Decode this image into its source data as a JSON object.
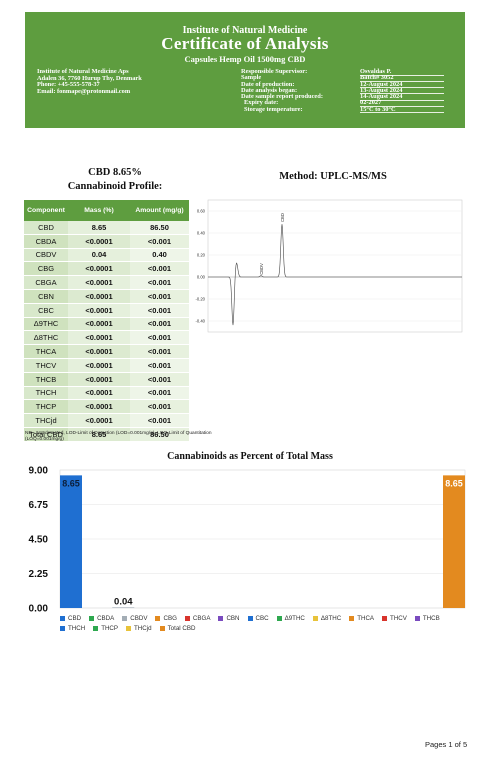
{
  "header": {
    "institute": "Institute of Natural Medicine",
    "title": "Certificate of Analysis",
    "product": "Capsules Hemp Oil 1500mg CBD",
    "company_lines": [
      "Institute of Natural Medicine Aps",
      "Adalen 36, 7760 Hurup Thy, Denmark",
      "Phone: +45-555-578-37",
      "Email: fonmape@protonmail.com"
    ],
    "fields": [
      {
        "label": "Responsible Supervisor:",
        "value": "Osvaldas P."
      },
      {
        "label": "Sample",
        "value": "Batch# 3052"
      },
      {
        "label": "Date of production:",
        "value": "12-August 2024"
      },
      {
        "label": "Date analysis began:",
        "value": "13-August 2024"
      },
      {
        "label": "Date sample report produced:",
        "value": "14-August 2024"
      },
      {
        "label": "Expiry date:",
        "value": "02-2027"
      },
      {
        "label": "Storage temperature:",
        "value": "15°C to 30°C"
      }
    ]
  },
  "profile": {
    "line1": "CBD 8.65%",
    "line2": "Cannabinoid Profile:"
  },
  "method": "Method: UPLC-MS/MS",
  "table": {
    "columns": [
      "Component",
      "Mass (%)",
      "Amount (mg/g)"
    ],
    "rows": [
      [
        "CBD",
        "8.65",
        "86.50"
      ],
      [
        "CBDA",
        "<0.0001",
        "<0.001"
      ],
      [
        "CBDV",
        "0.04",
        "0.40"
      ],
      [
        "CBG",
        "<0.0001",
        "<0.001"
      ],
      [
        "CBGA",
        "<0.0001",
        "<0.001"
      ],
      [
        "CBN",
        "<0.0001",
        "<0.001"
      ],
      [
        "CBC",
        "<0.0001",
        "<0.001"
      ],
      [
        "Δ9THC",
        "<0.0001",
        "<0.001"
      ],
      [
        "Δ8THC",
        "<0.0001",
        "<0.001"
      ],
      [
        "THCA",
        "<0.0001",
        "<0.001"
      ],
      [
        "THCV",
        "<0.0001",
        "<0.001"
      ],
      [
        "THCB",
        "<0.0001",
        "<0.001"
      ],
      [
        "THCH",
        "<0.0001",
        "<0.001"
      ],
      [
        "THCP",
        "<0.0001",
        "<0.001"
      ],
      [
        "THCjd",
        "<0.0001",
        "<0.001"
      ],
      [
        "Total CBD",
        "8.65",
        "86.50"
      ]
    ]
  },
  "footnote": "ND - Not detected, LOD-Limit of Detection (LOD=0.001mg/g), LOQ-Limit of Quantitation (LOQ=0.001mg/g)",
  "chart_data": [
    {
      "type": "line",
      "title": "",
      "yticks": [
        "0.60",
        "0.40",
        "0.20",
        "0.00",
        "-0.20",
        "-0.40"
      ],
      "ylim": [
        -0.5,
        0.7
      ],
      "peak_labels": [
        "CBDV",
        "CBD"
      ],
      "grid": true
    },
    {
      "type": "bar",
      "title": "Cannabinoids as Percent of Total Mass",
      "ylim": [
        0,
        9.0
      ],
      "yticks": [
        "9.00",
        "6.75",
        "4.50",
        "2.25",
        "0.00"
      ],
      "categories": [
        "CBD",
        "CBDA",
        "CBDV",
        "CBG",
        "CBGA",
        "CBN",
        "CBC",
        "Δ9THC",
        "Δ8THC",
        "THCA",
        "THCV",
        "THCB",
        "THCH",
        "THCP",
        "THCjd",
        "Total CBD"
      ],
      "values": [
        8.65,
        0,
        0.04,
        0,
        0,
        0,
        0,
        0,
        0,
        0,
        0,
        0,
        0,
        0,
        0,
        8.65
      ],
      "data_labels": [
        "8.65",
        "",
        "0.04",
        "",
        "",
        "",
        "",
        "",
        "",
        "",
        "",
        "",
        "",
        "",
        "",
        "8.65"
      ],
      "colors": [
        "#1f6fd1",
        "#2ea84f",
        "#a3adb5",
        "#e38a1f",
        "#d8342c",
        "#7a4bbf",
        "#1f6fd1",
        "#2ea84f",
        "#e8c33a",
        "#e38a1f",
        "#d8342c",
        "#7a4bbf",
        "#1f6fd1",
        "#2ea84f",
        "#e8c33a",
        "#e38a1f"
      ],
      "grid": true,
      "legend_position": "bottom"
    }
  ],
  "pages": "Pages   1 of 5"
}
